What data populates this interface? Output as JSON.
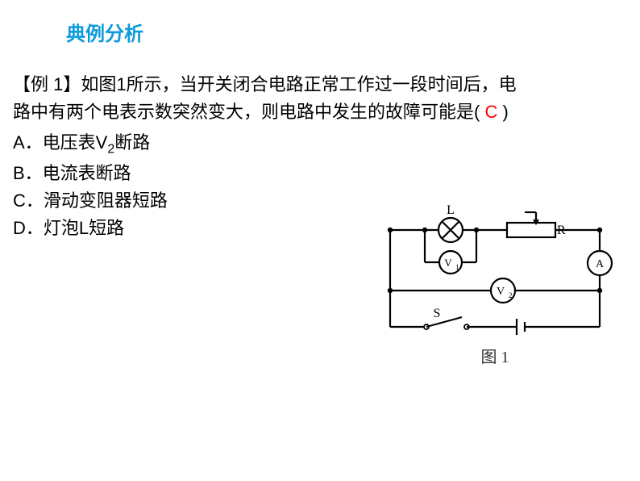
{
  "section_title": "典例分析",
  "section_title_color": "#0d9adb",
  "example_label": "【例 1】",
  "question_line1": "如图1所示，当开关闭合电路正常工作过一段时间后，电",
  "question_line2": "路中有两个电表示数突然变大，则电路中发生的故障可能是(",
  "question_close": ")",
  "answer": "C",
  "answer_color": "#ff0000",
  "choices": {
    "A_prefix": "A．电压表V",
    "A_sub": "2",
    "A_suffix": "断路",
    "B": "B．电流表断路",
    "C": "C．滑动变阻器短路",
    "D": "D．灯泡L短路"
  },
  "figure": {
    "caption": "图 1",
    "labels": {
      "L": "L",
      "R": "R",
      "S": "S",
      "V1": "V",
      "V1_sub": "1",
      "V2": "V",
      "V2_sub": "2",
      "A": "A"
    },
    "style": {
      "stroke": "#000000",
      "stroke_width": 2.2,
      "bg": "#ffffff"
    }
  }
}
